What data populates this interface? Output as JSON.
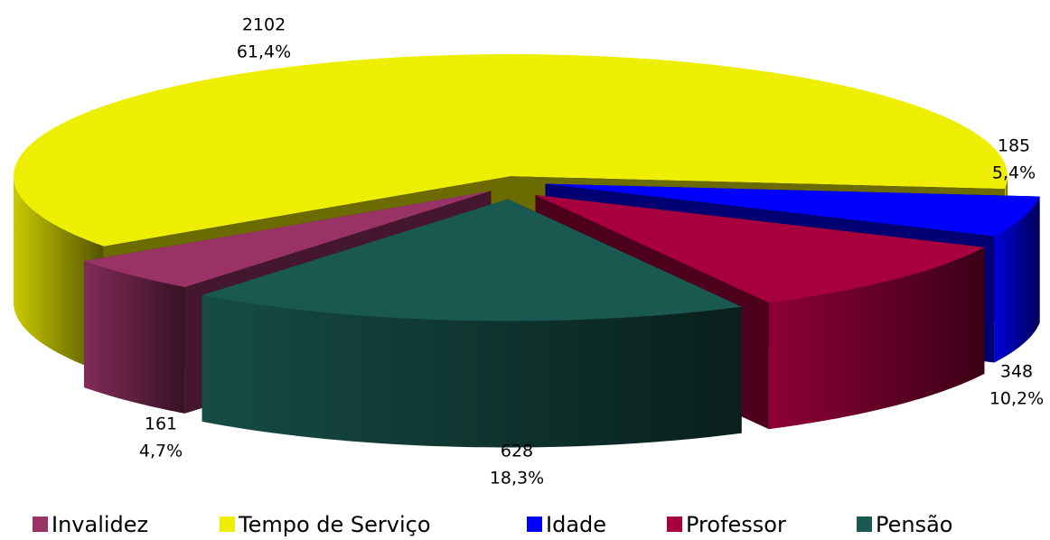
{
  "chart_data": {
    "type": "pie",
    "categories": [
      "Invalidez",
      "Tempo de Serviço",
      "Idade",
      "Professor",
      "Pensão"
    ],
    "values": [
      161,
      2102,
      185,
      348,
      628
    ],
    "percentages": [
      4.7,
      61.4,
      5.4,
      10.2,
      18.3
    ],
    "percentage_labels": [
      "4,7%",
      "61,4%",
      "5,4%",
      "10,2%",
      "18,3%"
    ],
    "colors": [
      "#993366",
      "#eeee00",
      "#0000ff",
      "#a8003f",
      "#1a5950"
    ],
    "legend": "bottom"
  }
}
